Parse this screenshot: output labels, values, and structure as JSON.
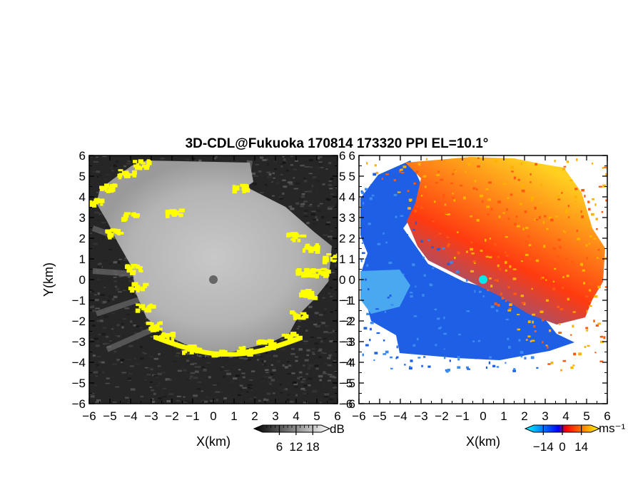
{
  "chart_data": [
    {
      "type": "heatmap",
      "title": "3D-CDL@Fukuoka 170814 173320 PPI EL=10.1°",
      "xlabel": "X(km)",
      "ylabel": "Y(km)",
      "xlim": [
        -6,
        6
      ],
      "ylim": [
        -6,
        6
      ],
      "xticks": [
        -6,
        -5,
        -4,
        -3,
        -2,
        -1,
        0,
        1,
        2,
        3,
        4,
        5,
        6
      ],
      "yticks": [
        -6,
        -5,
        -4,
        -3,
        -2,
        -1,
        0,
        1,
        2,
        3,
        4,
        5,
        6
      ],
      "xtick_labels": [
        "−6",
        "−5",
        "−4",
        "−3",
        "−2",
        "−1",
        "0",
        "1",
        "2",
        "3",
        "4",
        "5",
        "6"
      ],
      "ytick_labels": [
        "−6",
        "−5",
        "−4",
        "−3",
        "−2",
        "−1",
        "0",
        "1",
        "2",
        "3",
        "4",
        "5",
        "6"
      ],
      "colorbar": {
        "unit": "dB",
        "ticks": [
          "6",
          "12",
          "18"
        ],
        "values": [
          6,
          12,
          18
        ],
        "range": [
          0,
          21
        ],
        "colors": [
          "#000000",
          "#ffffff"
        ]
      },
      "center": {
        "x": 0,
        "y": 0
      },
      "coverage_radius_km": 4.0,
      "highlight_color": "#ffff00"
    },
    {
      "type": "heatmap",
      "xlabel": "X(km)",
      "xlim": [
        -6,
        6
      ],
      "ylim": [
        -6,
        6
      ],
      "xticks": [
        -6,
        -5,
        -4,
        -3,
        -2,
        -1,
        0,
        1,
        2,
        3,
        4,
        5,
        6
      ],
      "yticks": [
        -6,
        -5,
        -4,
        -3,
        -2,
        -1,
        0,
        1,
        2,
        3,
        4,
        5,
        6
      ],
      "xtick_labels": [
        "−6",
        "−5",
        "−4",
        "−3",
        "−2",
        "−1",
        "0",
        "1",
        "2",
        "3",
        "4",
        "5",
        "6"
      ],
      "ytick_labels": [
        "−6",
        "−5",
        "−4",
        "−3",
        "−2",
        "−1",
        "0",
        "1",
        "2",
        "3",
        "4",
        "5",
        "6"
      ],
      "colorbar": {
        "unit": "ms⁻¹",
        "ticks": [
          "−14",
          "0",
          "14"
        ],
        "values": [
          -14,
          0,
          14
        ],
        "range": [
          -21,
          21
        ],
        "colors": [
          "#00ffff",
          "#0000ff",
          "#ff0000",
          "#ffff00"
        ]
      },
      "center": {
        "x": 0,
        "y": 0
      }
    }
  ]
}
